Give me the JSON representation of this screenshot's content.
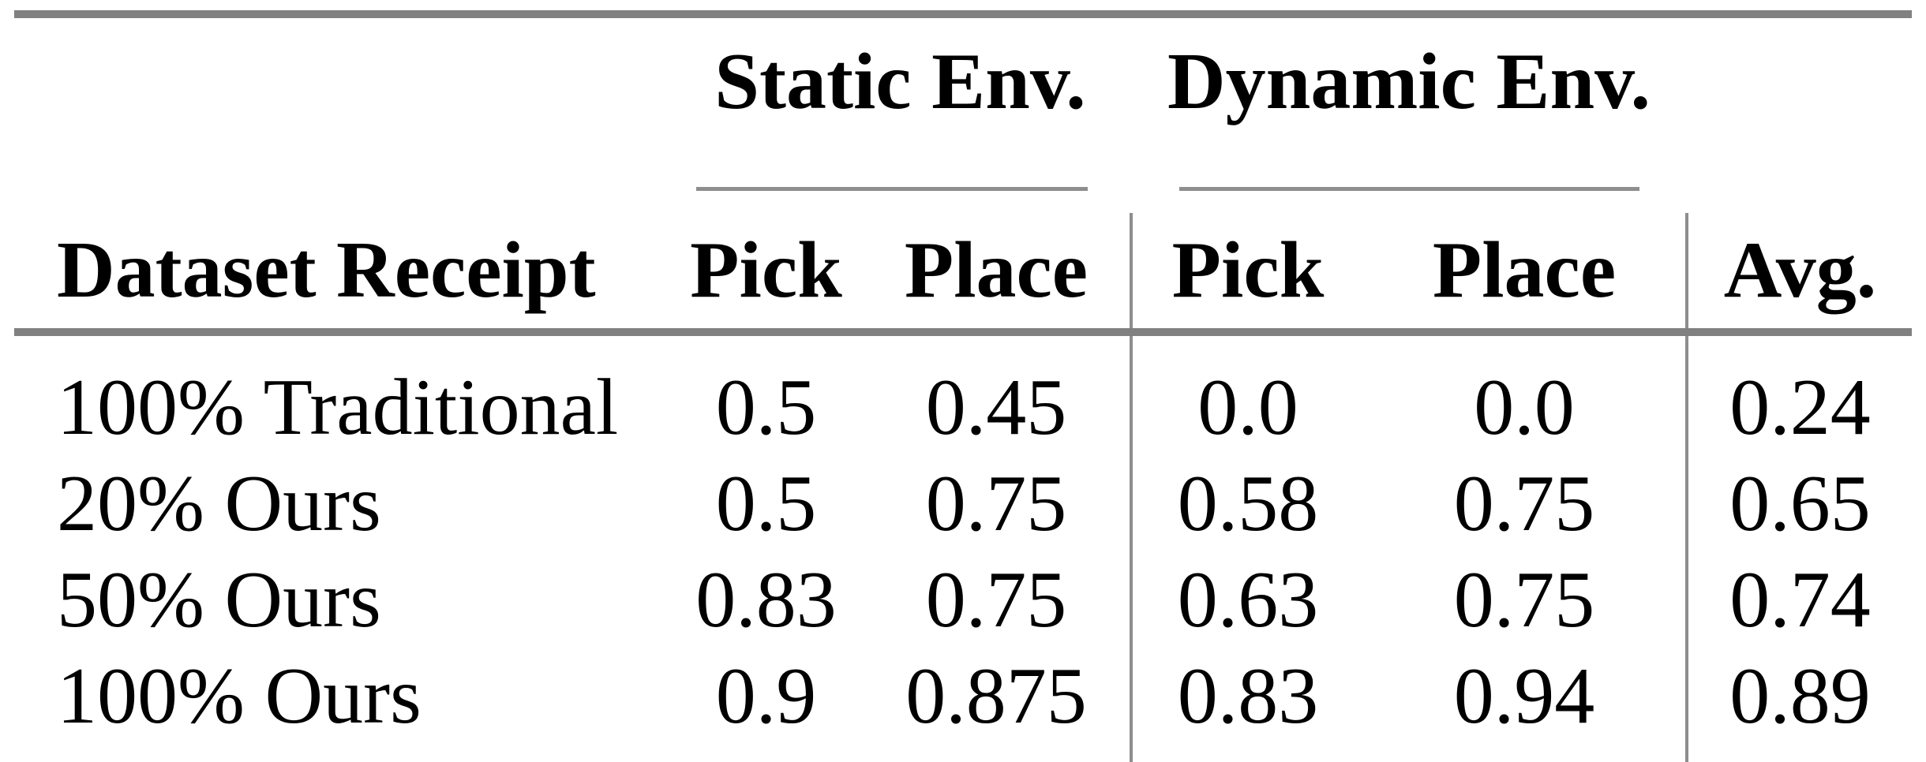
{
  "page": {
    "background": "#ffffff",
    "text_color": "#000000"
  },
  "table": {
    "rule_color_thick": "#808080",
    "rule_color_thin": "#8e8e8e",
    "group_headers": [
      {
        "label": "Static Env."
      },
      {
        "label": "Dynamic Env."
      }
    ],
    "header": {
      "row_label": "Dataset Receipt",
      "static_pick": "Pick",
      "static_place": "Place",
      "dynamic_pick": "Pick",
      "dynamic_place": "Place",
      "avg": "Avg."
    },
    "rows": [
      {
        "label": "100% Traditional",
        "static_pick": "0.5",
        "static_place": "0.45",
        "dynamic_pick": "0.0",
        "dynamic_place": "0.0",
        "avg": "0.24"
      },
      {
        "label": "20% Ours",
        "static_pick": "0.5",
        "static_place": "0.75",
        "dynamic_pick": "0.58",
        "dynamic_place": "0.75",
        "avg": "0.65"
      },
      {
        "label": "50% Ours",
        "static_pick": "0.83",
        "static_place": "0.75",
        "dynamic_pick": "0.63",
        "dynamic_place": "0.75",
        "avg": "0.74"
      },
      {
        "label": "100% Ours",
        "static_pick": "0.9",
        "static_place": "0.875",
        "dynamic_pick": "0.83",
        "dynamic_place": "0.94",
        "avg": "0.89"
      }
    ]
  }
}
